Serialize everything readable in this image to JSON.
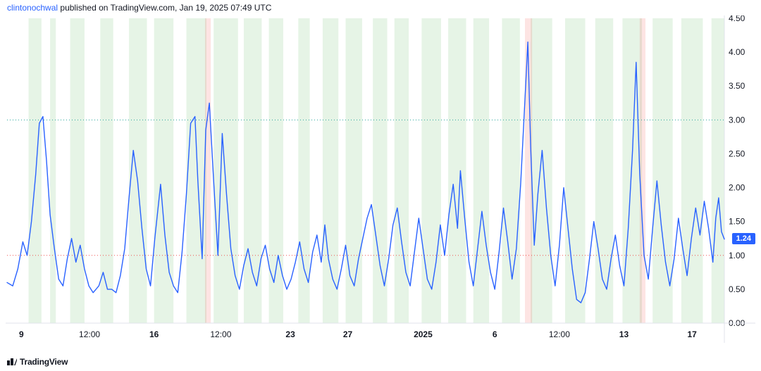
{
  "attribution": {
    "user": "clintonochwal",
    "host": "TradingView.com",
    "timestamp": "Jan 19, 2025 07:49 UTC",
    "published_word": "published on"
  },
  "logo": "TradingView",
  "chart": {
    "type": "line",
    "background_color": "#ffffff",
    "line_color": "#2962ff",
    "line_width": 1.4,
    "band_color": "rgba(76,175,80,0.14)",
    "pink_band_color": "rgba(244,67,54,0.14)",
    "grid_color": "#e0e3eb",
    "axis_font_size": 12,
    "axis_color": "#131722",
    "border_color": "#e0e3eb",
    "y": {
      "min": 0.0,
      "max": 4.5,
      "tick_step": 0.5,
      "ticks": [
        0.0,
        0.5,
        1.0,
        1.5,
        2.0,
        2.5,
        3.0,
        3.5,
        4.0,
        4.5
      ]
    },
    "x": {
      "min": 0,
      "max": 1000,
      "ticks": [
        {
          "pos": 20,
          "label": "9",
          "bold": true
        },
        {
          "pos": 115,
          "label": "12:00",
          "bold": false
        },
        {
          "pos": 205,
          "label": "16",
          "bold": true
        },
        {
          "pos": 298,
          "label": "12:00",
          "bold": false
        },
        {
          "pos": 395,
          "label": "23",
          "bold": true
        },
        {
          "pos": 475,
          "label": "27",
          "bold": true
        },
        {
          "pos": 580,
          "label": "2025",
          "bold": true
        },
        {
          "pos": 680,
          "label": "6",
          "bold": true
        },
        {
          "pos": 770,
          "label": "12:00",
          "bold": false
        },
        {
          "pos": 860,
          "label": "13",
          "bold": true
        },
        {
          "pos": 955,
          "label": "17",
          "bold": true
        }
      ]
    },
    "ref_lines": [
      {
        "y": 1.0,
        "color": "#ef5350",
        "dash": "1,3",
        "width": 1
      },
      {
        "y": 3.0,
        "color": "#26a69a",
        "dash": "1,3",
        "width": 1
      }
    ],
    "current": {
      "value": 1.24,
      "y": 1.24,
      "badge_bg": "#2962ff",
      "badge_fg": "#ffffff"
    },
    "bands": [
      [
        30,
        48
      ],
      [
        60,
        68
      ],
      [
        88,
        108
      ],
      [
        130,
        148
      ],
      [
        170,
        195
      ],
      [
        205,
        232
      ],
      [
        250,
        278
      ],
      [
        288,
        322
      ],
      [
        330,
        355
      ],
      [
        365,
        385
      ],
      [
        406,
        422
      ],
      [
        440,
        462
      ],
      [
        472,
        495
      ],
      [
        510,
        530
      ],
      [
        540,
        560
      ],
      [
        578,
        605
      ],
      [
        615,
        640
      ],
      [
        650,
        672
      ],
      [
        690,
        715
      ],
      [
        730,
        760
      ],
      [
        778,
        806
      ],
      [
        820,
        845
      ],
      [
        858,
        885
      ],
      [
        900,
        928
      ],
      [
        940,
        970
      ],
      [
        982,
        1000
      ]
    ],
    "pink_bands": [
      [
        276,
        284
      ],
      [
        722,
        732
      ],
      [
        882,
        890
      ]
    ],
    "series": [
      [
        0,
        0.6
      ],
      [
        8,
        0.55
      ],
      [
        15,
        0.8
      ],
      [
        22,
        1.2
      ],
      [
        28,
        1.0
      ],
      [
        34,
        1.5
      ],
      [
        40,
        2.2
      ],
      [
        45,
        2.95
      ],
      [
        50,
        3.05
      ],
      [
        55,
        2.4
      ],
      [
        60,
        1.6
      ],
      [
        66,
        1.1
      ],
      [
        72,
        0.65
      ],
      [
        78,
        0.55
      ],
      [
        84,
        0.95
      ],
      [
        90,
        1.25
      ],
      [
        96,
        0.9
      ],
      [
        102,
        1.15
      ],
      [
        108,
        0.8
      ],
      [
        114,
        0.55
      ],
      [
        120,
        0.45
      ],
      [
        128,
        0.55
      ],
      [
        134,
        0.75
      ],
      [
        140,
        0.5
      ],
      [
        146,
        0.5
      ],
      [
        152,
        0.45
      ],
      [
        158,
        0.7
      ],
      [
        164,
        1.1
      ],
      [
        170,
        1.85
      ],
      [
        176,
        2.55
      ],
      [
        182,
        2.1
      ],
      [
        188,
        1.4
      ],
      [
        194,
        0.8
      ],
      [
        200,
        0.55
      ],
      [
        206,
        1.25
      ],
      [
        214,
        2.05
      ],
      [
        220,
        1.3
      ],
      [
        226,
        0.75
      ],
      [
        232,
        0.55
      ],
      [
        238,
        0.45
      ],
      [
        244,
        1.05
      ],
      [
        250,
        1.9
      ],
      [
        256,
        2.95
      ],
      [
        262,
        3.05
      ],
      [
        266,
        2.1
      ],
      [
        272,
        0.95
      ],
      [
        277,
        2.85
      ],
      [
        282,
        3.25
      ],
      [
        288,
        2.1
      ],
      [
        294,
        1.0
      ],
      [
        300,
        2.8
      ],
      [
        306,
        1.9
      ],
      [
        312,
        1.1
      ],
      [
        318,
        0.7
      ],
      [
        324,
        0.5
      ],
      [
        330,
        0.85
      ],
      [
        336,
        1.1
      ],
      [
        342,
        0.75
      ],
      [
        348,
        0.55
      ],
      [
        354,
        0.95
      ],
      [
        360,
        1.15
      ],
      [
        366,
        0.8
      ],
      [
        372,
        0.6
      ],
      [
        378,
        1.0
      ],
      [
        384,
        0.7
      ],
      [
        390,
        0.5
      ],
      [
        396,
        0.65
      ],
      [
        402,
        0.9
      ],
      [
        408,
        1.2
      ],
      [
        414,
        0.8
      ],
      [
        420,
        0.6
      ],
      [
        426,
        1.05
      ],
      [
        432,
        1.3
      ],
      [
        438,
        0.9
      ],
      [
        443,
        1.45
      ],
      [
        448,
        0.95
      ],
      [
        454,
        0.65
      ],
      [
        460,
        0.5
      ],
      [
        466,
        0.8
      ],
      [
        472,
        1.15
      ],
      [
        478,
        0.7
      ],
      [
        484,
        0.55
      ],
      [
        490,
        0.95
      ],
      [
        496,
        1.25
      ],
      [
        502,
        1.55
      ],
      [
        508,
        1.75
      ],
      [
        514,
        1.3
      ],
      [
        520,
        0.85
      ],
      [
        526,
        0.55
      ],
      [
        532,
        0.95
      ],
      [
        538,
        1.45
      ],
      [
        544,
        1.7
      ],
      [
        550,
        1.2
      ],
      [
        556,
        0.75
      ],
      [
        562,
        0.55
      ],
      [
        568,
        1.05
      ],
      [
        574,
        1.55
      ],
      [
        580,
        1.1
      ],
      [
        586,
        0.65
      ],
      [
        592,
        0.5
      ],
      [
        598,
        0.9
      ],
      [
        604,
        1.45
      ],
      [
        610,
        1.0
      ],
      [
        616,
        1.6
      ],
      [
        622,
        2.05
      ],
      [
        628,
        1.4
      ],
      [
        632,
        2.25
      ],
      [
        638,
        1.55
      ],
      [
        644,
        0.9
      ],
      [
        650,
        0.55
      ],
      [
        656,
        1.1
      ],
      [
        662,
        1.65
      ],
      [
        668,
        1.15
      ],
      [
        674,
        0.75
      ],
      [
        680,
        0.5
      ],
      [
        686,
        1.05
      ],
      [
        692,
        1.7
      ],
      [
        698,
        1.2
      ],
      [
        704,
        0.65
      ],
      [
        710,
        1.1
      ],
      [
        716,
        2.05
      ],
      [
        722,
        3.3
      ],
      [
        726,
        4.15
      ],
      [
        730,
        2.6
      ],
      [
        735,
        1.15
      ],
      [
        740,
        1.9
      ],
      [
        746,
        2.55
      ],
      [
        752,
        1.7
      ],
      [
        758,
        1.0
      ],
      [
        764,
        0.55
      ],
      [
        770,
        1.15
      ],
      [
        776,
        2.0
      ],
      [
        782,
        1.4
      ],
      [
        788,
        0.8
      ],
      [
        794,
        0.35
      ],
      [
        800,
        0.3
      ],
      [
        806,
        0.45
      ],
      [
        812,
        0.95
      ],
      [
        818,
        1.5
      ],
      [
        824,
        1.1
      ],
      [
        830,
        0.65
      ],
      [
        836,
        0.5
      ],
      [
        842,
        0.95
      ],
      [
        848,
        1.3
      ],
      [
        854,
        0.85
      ],
      [
        860,
        0.55
      ],
      [
        866,
        1.4
      ],
      [
        872,
        2.55
      ],
      [
        877,
        3.85
      ],
      [
        882,
        2.2
      ],
      [
        888,
        1.0
      ],
      [
        894,
        0.65
      ],
      [
        900,
        1.4
      ],
      [
        906,
        2.1
      ],
      [
        912,
        1.45
      ],
      [
        918,
        0.9
      ],
      [
        924,
        0.55
      ],
      [
        930,
        0.95
      ],
      [
        936,
        1.55
      ],
      [
        942,
        1.1
      ],
      [
        948,
        0.7
      ],
      [
        954,
        1.25
      ],
      [
        960,
        1.7
      ],
      [
        966,
        1.3
      ],
      [
        972,
        1.8
      ],
      [
        978,
        1.4
      ],
      [
        984,
        0.9
      ],
      [
        988,
        1.55
      ],
      [
        992,
        1.85
      ],
      [
        996,
        1.35
      ],
      [
        1000,
        1.24
      ]
    ]
  }
}
